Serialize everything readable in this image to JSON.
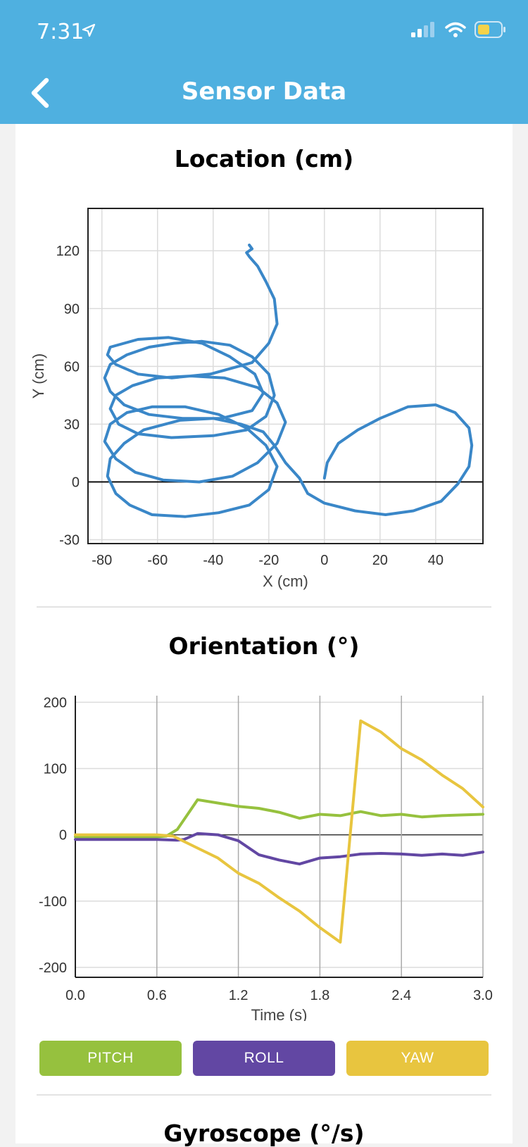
{
  "status": {
    "time": "7:31"
  },
  "header": {
    "title": "Sensor Data"
  },
  "location": {
    "title": "Location (cm)",
    "chart_data": {
      "type": "line",
      "title": "Location (cm)",
      "xlabel": "X (cm)",
      "ylabel": "Y (cm)",
      "xlim": [
        -85,
        57
      ],
      "ylim": [
        -32,
        142
      ],
      "xticks": [
        "-80",
        "-60",
        "-40",
        "-20",
        "0",
        "20",
        "40"
      ],
      "yticks": [
        "-30",
        "0",
        "30",
        "60",
        "90",
        "120"
      ],
      "grid": true,
      "series": [
        {
          "color": "#3a87c8",
          "x": [
            0,
            1,
            5,
            12,
            20,
            30,
            40,
            47,
            52,
            53,
            52,
            48,
            42,
            32,
            22,
            11,
            0,
            -6,
            -9,
            -14,
            -18,
            -22,
            -30,
            -40,
            -52,
            -65,
            -72,
            -77,
            -78,
            -75,
            -70,
            -62,
            -50,
            -38,
            -27,
            -20,
            -17,
            -21,
            -28,
            -38,
            -50,
            -62,
            -71,
            -77,
            -79,
            -75,
            -68,
            -58,
            -45,
            -33,
            -24,
            -17,
            -14,
            -17,
            -24,
            -36,
            -48,
            -60,
            -69,
            -75,
            -77,
            -74,
            -67,
            -55,
            -40,
            -28,
            -21,
            -18,
            -20,
            -26,
            -34,
            -44,
            -54,
            -63,
            -71,
            -77,
            -79,
            -77,
            -72,
            -63,
            -51,
            -37,
            -26,
            -22,
            -25,
            -34,
            -44,
            -56,
            -67,
            -77,
            -78,
            -75,
            -67,
            -55,
            -41,
            -26,
            -20,
            -17,
            -18,
            -21,
            -24,
            -27,
            -28,
            -26,
            -27
          ],
          "y": [
            2,
            10,
            20,
            27,
            33,
            39,
            40,
            36,
            28,
            19,
            8,
            -1,
            -10,
            -15,
            -17,
            -15,
            -11,
            -6,
            2,
            10,
            19,
            26,
            30,
            33,
            32,
            27,
            20,
            12,
            3,
            -6,
            -12,
            -17,
            -18,
            -16,
            -12,
            -4,
            8,
            19,
            28,
            35,
            39,
            39,
            36,
            30,
            21,
            12,
            5,
            1,
            0,
            3,
            10,
            20,
            31,
            41,
            49,
            54,
            55,
            54,
            50,
            45,
            38,
            30,
            25,
            23,
            24,
            27,
            34,
            45,
            56,
            65,
            71,
            73,
            72,
            70,
            66,
            61,
            54,
            47,
            40,
            35,
            33,
            33,
            37,
            46,
            56,
            65,
            72,
            75,
            74,
            70,
            66,
            61,
            56,
            54,
            56,
            62,
            72,
            82,
            95,
            104,
            112,
            117,
            119,
            121,
            123
          ]
        }
      ]
    }
  },
  "orientation": {
    "title": "Orientation (°)",
    "chart_data": {
      "type": "line",
      "title": "Orientation (°)",
      "xlabel": "Time (s)",
      "ylabel": "",
      "xlim": [
        0,
        3
      ],
      "ylim": [
        -215,
        210
      ],
      "xticks": [
        "0.0",
        "0.6",
        "1.2",
        "1.8",
        "2.4",
        "3.0"
      ],
      "yticks": [
        "-200",
        "-100",
        "0",
        "100",
        "200"
      ],
      "grid": true,
      "series": [
        {
          "name": "PITCH",
          "color": "#96c13e",
          "x": [
            0,
            0.6,
            0.67,
            0.75,
            0.9,
            1.05,
            1.2,
            1.35,
            1.5,
            1.65,
            1.8,
            1.95,
            2.1,
            2.25,
            2.4,
            2.55,
            2.7,
            2.85,
            3.0
          ],
          "y": [
            -3,
            -3,
            -2,
            8,
            53,
            48,
            43,
            40,
            34,
            25,
            31,
            29,
            35,
            29,
            31,
            27,
            29,
            30,
            31
          ]
        },
        {
          "name": "ROLL",
          "color": "#6247a3",
          "x": [
            0,
            0.6,
            0.75,
            0.8,
            0.9,
            1.05,
            1.2,
            1.35,
            1.5,
            1.65,
            1.8,
            1.95,
            2.1,
            2.25,
            2.4,
            2.55,
            2.7,
            2.85,
            3.0
          ],
          "y": [
            -7,
            -7,
            -8,
            -7,
            2,
            0,
            -9,
            -30,
            -38,
            -44,
            -35,
            -33,
            -29,
            -28,
            -29,
            -31,
            -29,
            -31,
            -26
          ]
        },
        {
          "name": "YAW",
          "color": "#e8c53f",
          "x": [
            0,
            0.6,
            0.72,
            0.9,
            1.05,
            1.2,
            1.35,
            1.5,
            1.65,
            1.8,
            1.95,
            2.1,
            2.25,
            2.4,
            2.55,
            2.7,
            2.85,
            3.0
          ],
          "y": [
            0,
            0,
            -2,
            -20,
            -35,
            -58,
            -73,
            -95,
            -115,
            -140,
            -162,
            172,
            155,
            130,
            113,
            90,
            70,
            42
          ]
        }
      ]
    },
    "legend": [
      {
        "label": "PITCH",
        "color": "#96c13e"
      },
      {
        "label": "ROLL",
        "color": "#6247a3"
      },
      {
        "label": "YAW",
        "color": "#e8c53f"
      }
    ]
  },
  "gyroscope": {
    "title": "Gyroscope (°/s)"
  }
}
